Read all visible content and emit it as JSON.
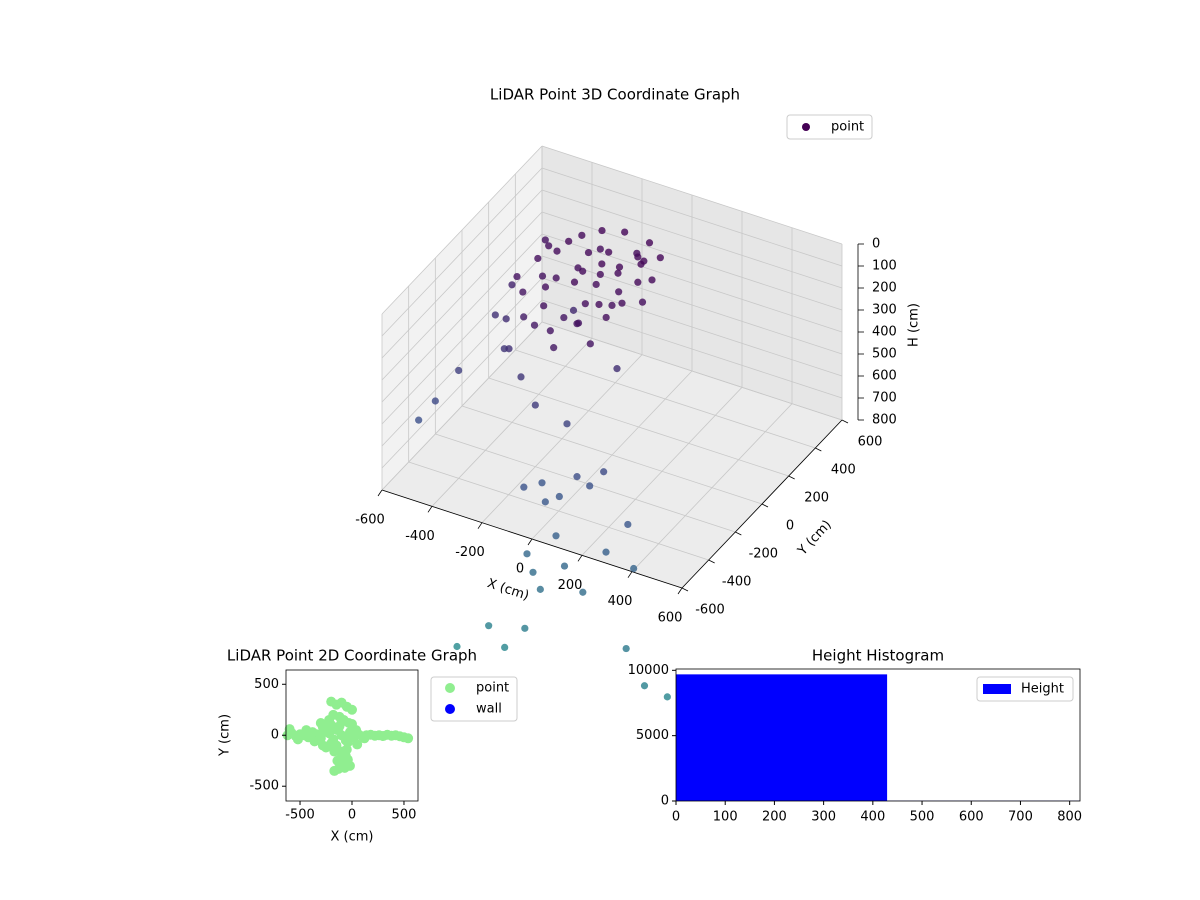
{
  "chart_data": [
    {
      "type": "scatter3d",
      "title": "LiDAR Point 3D Coordinate Graph",
      "xlabel": "X (cm)",
      "ylabel": "Y (cm)",
      "zlabel": "H (cm)",
      "xlim": [
        -600,
        600
      ],
      "ylim": [
        -600,
        600
      ],
      "zlim": [
        800,
        0
      ],
      "xticks": [
        -600,
        -400,
        -200,
        0,
        200,
        400,
        600
      ],
      "yticks": [
        -600,
        -400,
        -200,
        0,
        200,
        400,
        600
      ],
      "zticks": [
        0,
        100,
        200,
        300,
        400,
        500,
        600,
        700,
        800
      ],
      "grid": true,
      "legend": "upper right",
      "colormap": "viridis",
      "color_range": [
        0,
        3000
      ],
      "series": [
        {
          "name": "point",
          "color": "#440154",
          "x": [
            -100,
            -50,
            0,
            -150,
            -200,
            -120,
            -80,
            20,
            -30,
            -180,
            -250,
            -300,
            -350,
            -380,
            -330,
            -280,
            -60,
            30,
            50,
            60,
            -10,
            -220,
            -140,
            0,
            -90,
            -160,
            -40,
            10,
            -250,
            -200,
            -120,
            40,
            -70,
            -310,
            -360,
            -270,
            80,
            -20,
            -110,
            -190,
            -50,
            90,
            -150,
            -230,
            -100,
            20,
            -400,
            -300,
            -480,
            -520,
            -450,
            -420,
            -380,
            -300,
            -200,
            -100,
            20,
            -250,
            -560,
            -600,
            -640,
            -120,
            -80,
            -150,
            -40,
            20,
            60,
            100,
            0,
            -100,
            -60,
            -20,
            50,
            150,
            200,
            350,
            -200,
            -300,
            -120,
            -50,
            300,
            250,
            450,
            520
          ],
          "y": [
            100,
            150,
            50,
            0,
            120,
            200,
            -50,
            180,
            250,
            250,
            50,
            150,
            100,
            0,
            -50,
            200,
            -150,
            -100,
            100,
            250,
            300,
            -100,
            -200,
            0,
            50,
            80,
            120,
            220,
            -30,
            300,
            320,
            0,
            -120,
            60,
            200,
            280,
            150,
            -60,
            130,
            180,
            280,
            60,
            -80,
            -150,
            -250,
            -200,
            250,
            -100,
            150,
            100,
            50,
            -20,
            -60,
            -120,
            -200,
            -150,
            0,
            180,
            -100,
            -200,
            -250,
            -300,
            -350,
            -380,
            -320,
            -300,
            -280,
            -250,
            -420,
            -450,
            -480,
            -500,
            -450,
            -500,
            -420,
            -550,
            -550,
            -600,
            -580,
            -560,
            -400,
            -350,
            -600,
            -560
          ],
          "z": [
            80,
            60,
            90,
            70,
            100,
            50,
            110,
            40,
            70,
            90,
            120,
            80,
            100,
            130,
            150,
            60,
            130,
            100,
            60,
            40,
            30,
            140,
            160,
            120,
            90,
            75,
            65,
            55,
            110,
            45,
            35,
            95,
            150,
            140,
            110,
            80,
            70,
            85,
            55,
            65,
            80,
            110,
            180,
            200,
            190,
            160,
            130,
            220,
            300,
            420,
            380,
            460,
            420,
            480,
            520,
            600,
            400,
            350,
            560,
            650,
            720,
            780,
            820,
            760,
            800,
            700,
            740,
            680,
            900,
            1000,
            1050,
            1100,
            1000,
            1050,
            900,
            1200,
            1300,
            1400,
            1350,
            1250,
            950,
            800,
            1300,
            1350
          ]
        }
      ]
    },
    {
      "type": "scatter",
      "title": "LiDAR Point 2D Coordinate Graph",
      "xlabel": "X (cm)",
      "ylabel": "Y (cm)",
      "xlim": [
        -635,
        635
      ],
      "ylim": [
        -645,
        640
      ],
      "xticks": [
        -500,
        0,
        500
      ],
      "yticks": [
        -500,
        0,
        500
      ],
      "grid": false,
      "legend": "outside right",
      "series": [
        {
          "name": "point",
          "color": "#90ee90",
          "x": [
            -620,
            -580,
            -540,
            -500,
            -460,
            -420,
            -380,
            -340,
            -300,
            -260,
            -220,
            -180,
            -140,
            -100,
            -60,
            -20,
            20,
            60,
            100,
            140,
            180,
            220,
            260,
            300,
            340,
            380,
            420,
            460,
            500,
            540,
            -600,
            -520,
            -440,
            -360,
            -280,
            -200,
            -120,
            -40,
            40,
            120,
            -200,
            -150,
            -100,
            -50,
            0,
            -180,
            -120,
            -80,
            -30,
            -160,
            -90,
            -60,
            -140,
            -110,
            -70,
            -20,
            -170,
            -130,
            -100,
            -40,
            -300,
            -250,
            -200,
            -150,
            -100,
            -50,
            0,
            50,
            -280,
            -220,
            -170,
            -130
          ],
          "y": [
            0,
            20,
            -10,
            10,
            0,
            -20,
            30,
            10,
            -30,
            40,
            20,
            -40,
            50,
            0,
            -50,
            30,
            -20,
            10,
            -10,
            0,
            5,
            -5,
            0,
            -8,
            5,
            -5,
            0,
            -10,
            -20,
            -30,
            60,
            -40,
            50,
            -60,
            80,
            -80,
            90,
            -70,
            50,
            -30,
            330,
            300,
            320,
            280,
            250,
            200,
            180,
            150,
            120,
            -120,
            -160,
            -200,
            -250,
            -280,
            -320,
            -300,
            -350,
            -330,
            -220,
            -240,
            120,
            -120,
            100,
            -100,
            130,
            -140,
            110,
            -90,
            -100,
            150,
            -160,
            70
          ]
        },
        {
          "name": "wall",
          "color": "#0000ff",
          "x": [],
          "y": []
        }
      ]
    },
    {
      "type": "histogram",
      "title": "Height Histogram",
      "bins": [
        0,
        429,
        858
      ],
      "counts": [
        9690,
        20
      ],
      "name": "Height",
      "color": "#0000ff",
      "xlim": [
        0,
        821
      ],
      "ylim": [
        0,
        10100
      ],
      "xticks": [
        0,
        100,
        200,
        300,
        400,
        500,
        600,
        700,
        800
      ],
      "yticks": [
        0,
        5000,
        10000
      ],
      "grid": false,
      "legend": "upper right"
    }
  ]
}
